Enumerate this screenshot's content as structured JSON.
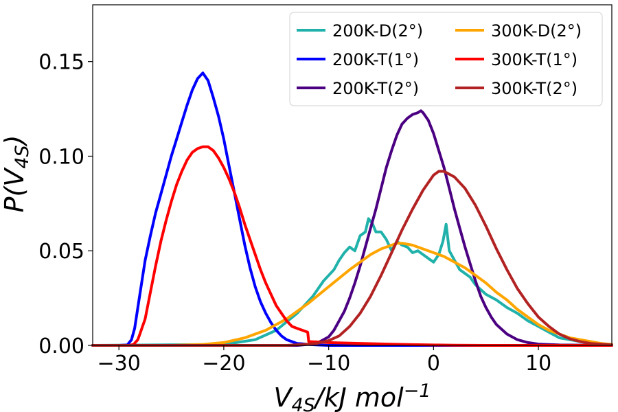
{
  "chart_data": {
    "type": "line",
    "title": "",
    "xlabel": "V_{4S}/kJ mol^{-1}",
    "ylabel": "P(V_{4S})",
    "xlim": [
      -32.5,
      17
    ],
    "ylim": [
      0,
      0.18
    ],
    "x_ticks": [
      -30,
      -20,
      -10,
      0,
      10
    ],
    "x_tick_labels": [
      "−30",
      "−20",
      "−10",
      "0",
      "10"
    ],
    "y_ticks": [
      0.0,
      0.05,
      0.1,
      0.15
    ],
    "y_tick_labels": [
      "0.00",
      "0.05",
      "0.10",
      "0.15"
    ],
    "grid": false,
    "legend_position": "top-right",
    "legend_columns": 2,
    "series": [
      {
        "name": "200K-D(2°)",
        "color": "#20b2aa",
        "x": [
          -32.5,
          -20,
          -17,
          -15,
          -13,
          -11.5,
          -10.5,
          -9.5,
          -9,
          -8.5,
          -8,
          -7.5,
          -7,
          -6.5,
          -6.2,
          -5.8,
          -5.5,
          -5,
          -4.5,
          -4,
          -3.5,
          -3,
          -2.5,
          -2,
          -1.5,
          -1,
          -0.5,
          0,
          0.5,
          0.9,
          1.2,
          1.5,
          2,
          2.5,
          3,
          3.5,
          4,
          5,
          6,
          7,
          8,
          9,
          10,
          11,
          12,
          13,
          14,
          15,
          17
        ],
        "y": [
          0,
          0.0005,
          0.003,
          0.008,
          0.017,
          0.026,
          0.034,
          0.04,
          0.045,
          0.049,
          0.052,
          0.05,
          0.058,
          0.06,
          0.067,
          0.064,
          0.06,
          0.06,
          0.056,
          0.05,
          0.055,
          0.053,
          0.052,
          0.049,
          0.05,
          0.048,
          0.046,
          0.044,
          0.048,
          0.055,
          0.064,
          0.05,
          0.045,
          0.04,
          0.038,
          0.036,
          0.032,
          0.027,
          0.024,
          0.02,
          0.017,
          0.013,
          0.01,
          0.007,
          0.004,
          0.003,
          0.002,
          0.001,
          0.0003
        ]
      },
      {
        "name": "200K-T(1°)",
        "color": "#0000ff",
        "x": [
          -32.5,
          -30,
          -29.2,
          -28.8,
          -28.5,
          -28,
          -27.5,
          -27,
          -26.5,
          -26,
          -25.5,
          -25,
          -24.5,
          -24,
          -23.5,
          -23,
          -22.5,
          -22,
          -21.5,
          -21,
          -20.5,
          -20,
          -19.5,
          -19,
          -18.5,
          -18,
          -17.5,
          -17,
          -16.5,
          -16,
          -15.5,
          -15,
          -14.5,
          -14,
          -13.5,
          -13,
          -12.5,
          -12,
          -11,
          -10,
          17
        ],
        "y": [
          0,
          0,
          0.0002,
          0.003,
          0.009,
          0.027,
          0.045,
          0.058,
          0.07,
          0.08,
          0.09,
          0.1,
          0.109,
          0.118,
          0.127,
          0.135,
          0.141,
          0.144,
          0.14,
          0.131,
          0.121,
          0.109,
          0.095,
          0.081,
          0.067,
          0.053,
          0.041,
          0.031,
          0.023,
          0.017,
          0.012,
          0.008,
          0.005,
          0.003,
          0.002,
          0.001,
          0.0008,
          0.0005,
          0.0002,
          0,
          0
        ]
      },
      {
        "name": "200K-T(2°)",
        "color": "#4b0082",
        "x": [
          -32.5,
          -13,
          -12,
          -11,
          -10,
          -9.5,
          -9,
          -8.5,
          -8,
          -7.5,
          -7,
          -6.5,
          -6,
          -5.5,
          -5,
          -4.5,
          -4,
          -3.5,
          -3,
          -2.5,
          -2,
          -1.5,
          -1.2,
          -1,
          -0.5,
          0,
          0.5,
          1,
          1.5,
          2,
          2.5,
          3,
          3.5,
          4,
          4.5,
          5,
          5.5,
          6,
          7,
          8,
          9,
          10,
          12,
          17
        ],
        "y": [
          0,
          0,
          0.0005,
          0.0015,
          0.0045,
          0.008,
          0.013,
          0.018,
          0.025,
          0.033,
          0.042,
          0.052,
          0.062,
          0.072,
          0.083,
          0.094,
          0.103,
          0.111,
          0.117,
          0.12,
          0.122,
          0.123,
          0.124,
          0.123,
          0.119,
          0.112,
          0.103,
          0.094,
          0.083,
          0.072,
          0.062,
          0.052,
          0.043,
          0.034,
          0.026,
          0.02,
          0.015,
          0.011,
          0.006,
          0.003,
          0.0015,
          0.0007,
          0.0002,
          0
        ]
      },
      {
        "name": "300K-D(2°)",
        "color": "#ffa500",
        "x": [
          -32.5,
          -25,
          -22,
          -20,
          -18,
          -16,
          -14,
          -12,
          -10,
          -8,
          -6,
          -5,
          -4,
          -3.5,
          -3,
          -2,
          -1,
          0,
          1,
          2,
          3,
          4,
          5,
          6,
          7,
          8,
          9,
          10,
          11,
          12,
          13,
          14,
          15,
          16,
          17
        ],
        "y": [
          0,
          0,
          0.0005,
          0.0015,
          0.004,
          0.008,
          0.014,
          0.022,
          0.031,
          0.04,
          0.048,
          0.051,
          0.053,
          0.054,
          0.054,
          0.053,
          0.051,
          0.049,
          0.047,
          0.044,
          0.041,
          0.037,
          0.033,
          0.028,
          0.024,
          0.019,
          0.015,
          0.011,
          0.008,
          0.006,
          0.004,
          0.003,
          0.002,
          0.001,
          0.0005
        ]
      },
      {
        "name": "300K-T(1°)",
        "color": "#ff0000",
        "x": [
          -32.5,
          -29,
          -28.6,
          -28.2,
          -28,
          -27.5,
          -27,
          -26.5,
          -26,
          -25.5,
          -25,
          -24.5,
          -24,
          -23.5,
          -23,
          -22.5,
          -22,
          -21.5,
          -21,
          -20.5,
          -20,
          -19.5,
          -19,
          -18.5,
          -18,
          -17.5,
          -17,
          -16.5,
          -16,
          -15.5,
          -15,
          -14.5,
          -14,
          -13.5,
          -13,
          -12.5,
          -12,
          -11.9,
          -11,
          -10,
          -8,
          -6,
          -4,
          -2,
          0,
          2,
          5,
          10,
          17
        ],
        "y": [
          0,
          0,
          0.0005,
          0.003,
          0.006,
          0.014,
          0.028,
          0.042,
          0.055,
          0.066,
          0.076,
          0.085,
          0.092,
          0.098,
          0.102,
          0.104,
          0.105,
          0.105,
          0.103,
          0.099,
          0.094,
          0.088,
          0.081,
          0.073,
          0.064,
          0.056,
          0.048,
          0.04,
          0.033,
          0.027,
          0.021,
          0.017,
          0.013,
          0.01,
          0.009,
          0.008,
          0.007,
          0.002,
          0.0018,
          0.0015,
          0.0012,
          0.0009,
          0.0006,
          0.0004,
          0.0002,
          0.0001,
          0,
          0,
          0
        ]
      },
      {
        "name": "300K-T(2°)",
        "color": "#b22222",
        "x": [
          -32.5,
          -14,
          -12,
          -11,
          -10,
          -9,
          -8,
          -7,
          -6,
          -5,
          -4,
          -3,
          -2,
          -1,
          0,
          0.5,
          1,
          2,
          3,
          4,
          5,
          6,
          7,
          8,
          9,
          10,
          11,
          12,
          13,
          14,
          15,
          17
        ],
        "y": [
          0,
          0,
          0.0006,
          0.0012,
          0.0025,
          0.005,
          0.01,
          0.017,
          0.026,
          0.037,
          0.049,
          0.061,
          0.072,
          0.082,
          0.09,
          0.092,
          0.092,
          0.089,
          0.083,
          0.074,
          0.063,
          0.051,
          0.04,
          0.03,
          0.022,
          0.015,
          0.01,
          0.006,
          0.0035,
          0.002,
          0.001,
          0.0003
        ]
      }
    ]
  }
}
